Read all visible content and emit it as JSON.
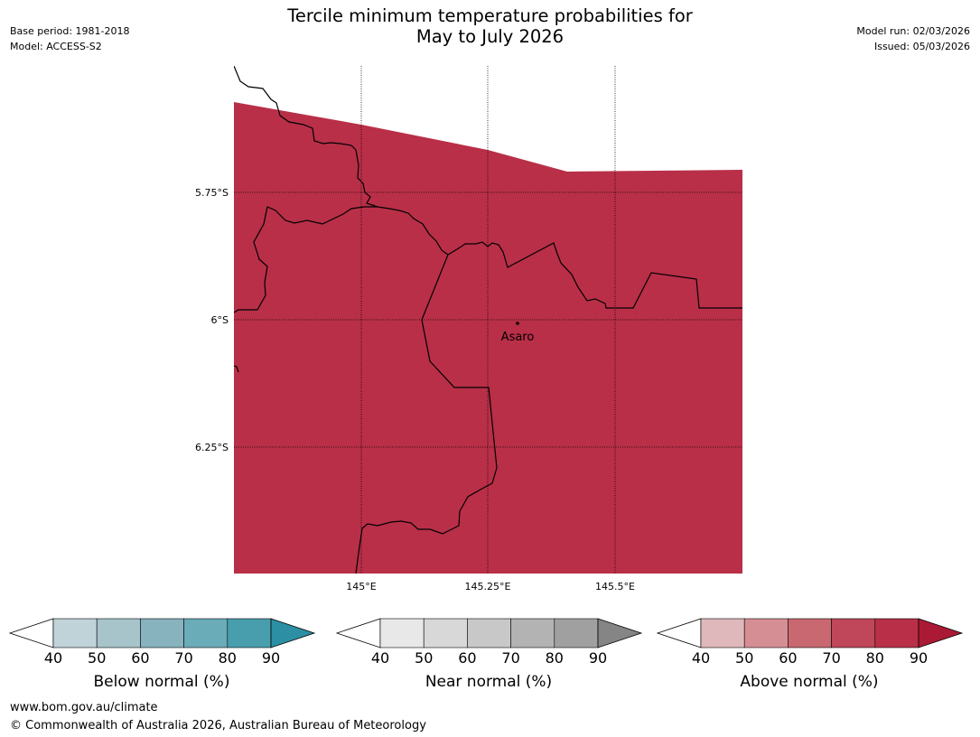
{
  "header": {
    "title_line1": "Tercile minimum temperature probabilities for",
    "title_line2": "May to July 2026",
    "base_period": "Base period: 1981-2018",
    "model": "Model: ACCESS-S2",
    "model_run": "Model run: 02/03/2026",
    "issued": "Issued: 05/03/2026"
  },
  "map": {
    "lat_labels": [
      "5.75°S",
      "6°S",
      "6.25°S"
    ],
    "lon_labels": [
      "145°E",
      "145.25°E",
      "145.5°E"
    ],
    "place_label": "Asaro",
    "band_colors": {
      "above_90": "#b92f48",
      "above_80": "#c0465a",
      "above_70": "#c96870",
      "above_60": "#d68e95",
      "above_50": "#dfb8bc"
    }
  },
  "colorbars": [
    {
      "label": "Below normal (%)",
      "ticks": [
        "40",
        "50",
        "60",
        "70",
        "80",
        "90"
      ],
      "colors": [
        "#bfd3d9",
        "#a6c4ca",
        "#87b3bf",
        "#6aacb8",
        "#499ead",
        "#2c8fa3"
      ]
    },
    {
      "label": "Near normal (%)",
      "ticks": [
        "40",
        "50",
        "60",
        "70",
        "80",
        "90"
      ],
      "colors": [
        "#e8e8e8",
        "#d8d8d8",
        "#c8c8c8",
        "#b3b3b3",
        "#a0a0a0",
        "#858585"
      ]
    },
    {
      "label": "Above normal (%)",
      "ticks": [
        "40",
        "50",
        "60",
        "70",
        "80",
        "90"
      ],
      "colors": [
        "#dfb8bc",
        "#d68e95",
        "#c96870",
        "#c0465a",
        "#b92f48",
        "#ab1a35"
      ]
    }
  ],
  "footer": {
    "url": "www.bom.gov.au/climate",
    "copyright": "© Commonwealth of Australia 2026, Australian Bureau of Meteorology"
  }
}
